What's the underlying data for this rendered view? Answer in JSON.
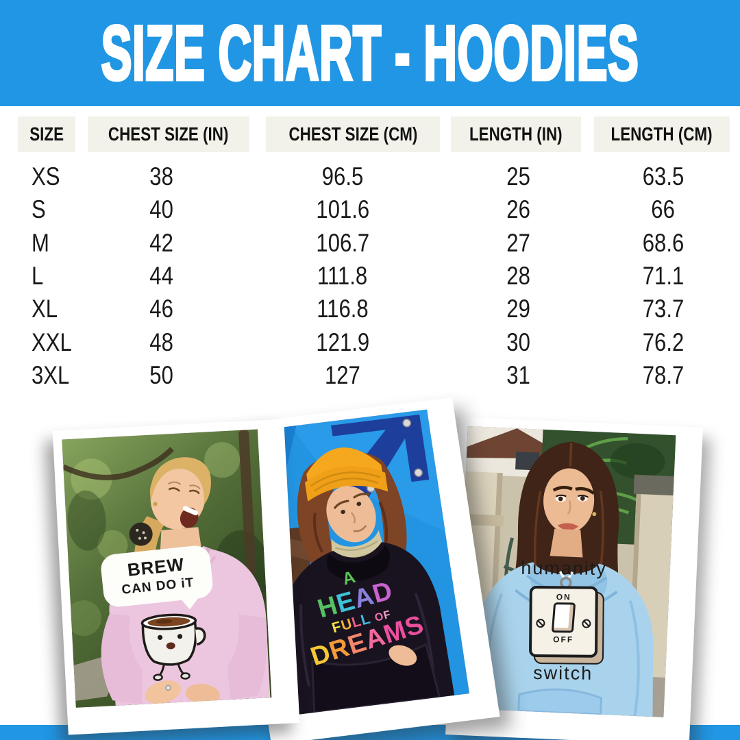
{
  "banner": {
    "title": "SIZE CHART - HOODIES",
    "bg_color": "#2196e4",
    "text_color": "#ffffff"
  },
  "chart_data": {
    "type": "table",
    "title": "SIZE CHART - HOODIES",
    "columns": [
      "SIZE",
      "CHEST SIZE (IN)",
      "CHEST SIZE (CM)",
      "LENGTH (IN)",
      "LENGTH (CM)"
    ],
    "rows": [
      [
        "XS",
        "38",
        "96.5",
        "25",
        "63.5"
      ],
      [
        "S",
        "40",
        "101.6",
        "26",
        "66"
      ],
      [
        "M",
        "42",
        "106.7",
        "27",
        "68.6"
      ],
      [
        "L",
        "44",
        "111.8",
        "28",
        "71.1"
      ],
      [
        "XL",
        "46",
        "116.8",
        "29",
        "73.7"
      ],
      [
        "XXL",
        "48",
        "121.9",
        "30",
        "76.2"
      ],
      [
        "3XL",
        "50",
        "127",
        "31",
        "78.7"
      ]
    ],
    "header_bg": "#f2f1ea",
    "text_color": "#1a1a1a"
  },
  "photos": [
    {
      "id": "pink-hoodie-photo",
      "hoodie_color": "#ecc5df",
      "design": {
        "bubble_line1": "BREW",
        "bubble_line2": "CAN DO iT"
      }
    },
    {
      "id": "black-hoodie-photo",
      "hoodie_color": "#1a141d",
      "design": {
        "lines": {
          "a": [
            {
              "ch": "A",
              "color": "#59c455"
            }
          ],
          "head": [
            {
              "ch": "H",
              "color": "#55c163"
            },
            {
              "ch": "E",
              "color": "#3ec0d6"
            },
            {
              "ch": "A",
              "color": "#8a7fdb"
            },
            {
              "ch": "D",
              "color": "#c964cf"
            }
          ],
          "full": [
            {
              "ch": "F",
              "color": "#f2e24a"
            },
            {
              "ch": "U",
              "color": "#f2b13a"
            },
            {
              "ch": "L",
              "color": "#ed5f86"
            },
            {
              "ch": "L",
              "color": "#49bde0"
            }
          ],
          "of": [
            {
              "ch": "O",
              "color": "#ef6fae"
            },
            {
              "ch": "F",
              "color": "#f3a6c6"
            }
          ],
          "dreams": [
            {
              "ch": "D",
              "color": "#f6c832"
            },
            {
              "ch": "R",
              "color": "#f59b3a"
            },
            {
              "ch": "E",
              "color": "#f3876b"
            },
            {
              "ch": "A",
              "color": "#f2699c"
            },
            {
              "ch": "M",
              "color": "#ee4fa0"
            },
            {
              "ch": "S",
              "color": "#e94f9b"
            }
          ]
        }
      }
    },
    {
      "id": "blue-hoodie-photo",
      "hoodie_color": "#a9d3ec",
      "design": {
        "word_top": "humanity",
        "switch_on": "ON",
        "switch_off": "OFF",
        "word_bottom": "switch"
      }
    }
  ],
  "footer": {
    "bar_color": "#2196e4"
  }
}
